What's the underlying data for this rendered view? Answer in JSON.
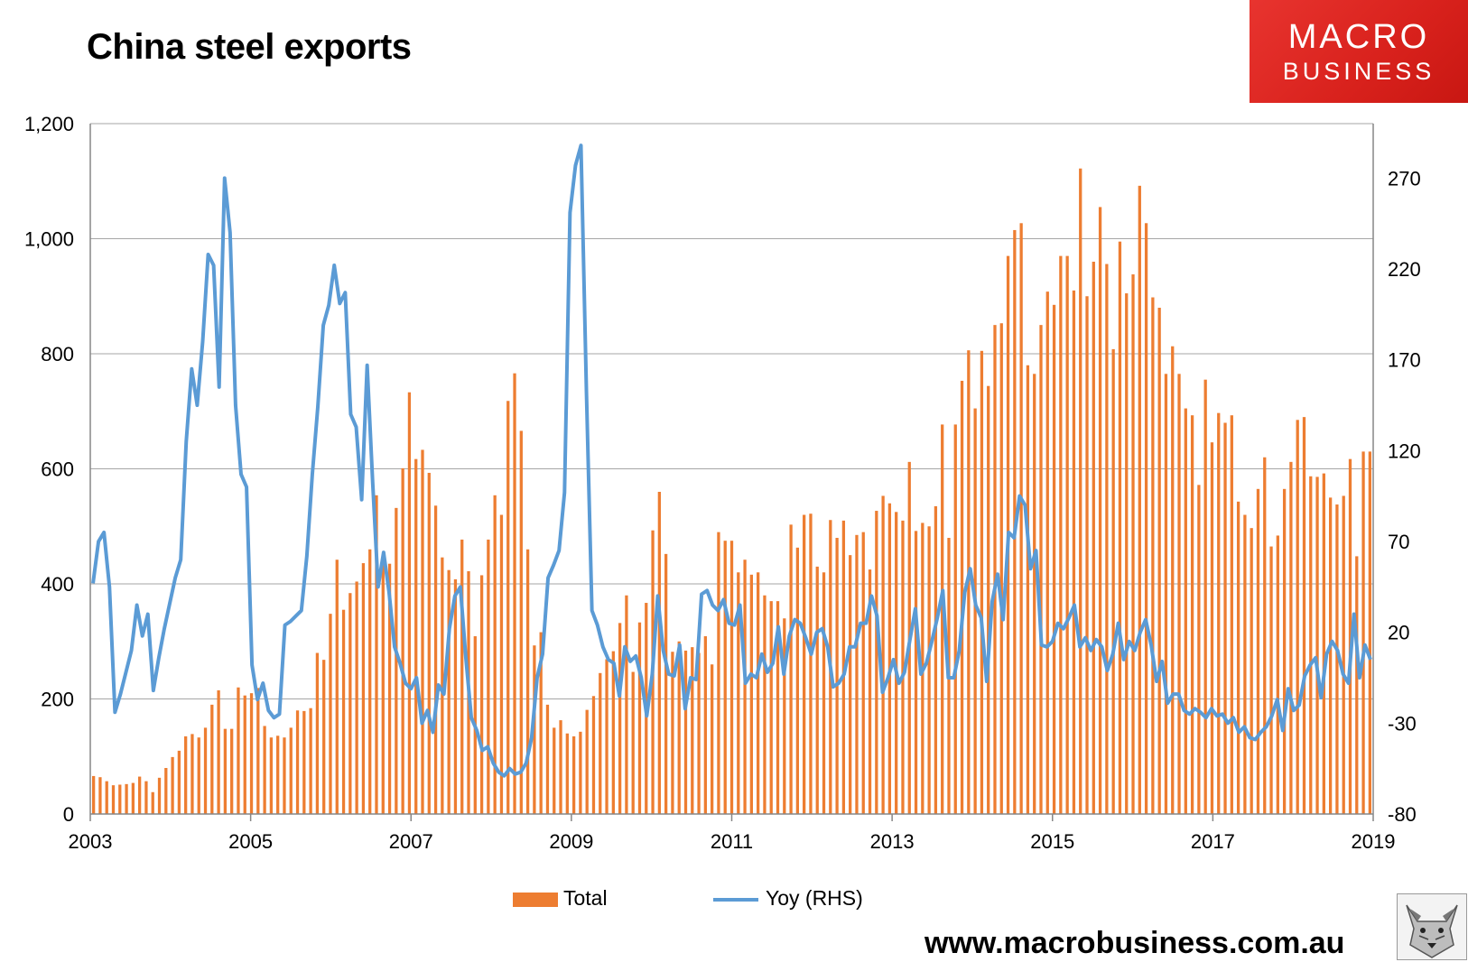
{
  "header": {
    "title": "China steel exports"
  },
  "logo": {
    "line1": "MACRO",
    "line2": "BUSINESS"
  },
  "footer": {
    "website": "www.macrobusiness.com.au"
  },
  "colors": {
    "bar": "#ED7D31",
    "line": "#5B9BD5",
    "grid": "#A6A6A6",
    "axis": "#868686"
  },
  "chart_data": {
    "type": "bar",
    "title": "China steel exports",
    "x_start": 2003,
    "x_end": 2019,
    "x_ticks": [
      "2003",
      "2005",
      "2007",
      "2009",
      "2011",
      "2013",
      "2015",
      "2017",
      "2019"
    ],
    "y_left": {
      "min": 0,
      "max": 1200,
      "ticks": [
        "0",
        "200",
        "400",
        "600",
        "800",
        "1,000",
        "1,200"
      ],
      "tick_values": [
        0,
        200,
        400,
        600,
        800,
        1000,
        1200
      ]
    },
    "y_right": {
      "min": -80,
      "max": 300,
      "ticks": [
        "-80",
        "-30",
        "20",
        "70",
        "120",
        "170",
        "220",
        "270"
      ],
      "tick_values": [
        -80,
        -30,
        20,
        70,
        120,
        170,
        220,
        270
      ]
    },
    "grid": true,
    "legend_position": "bottom",
    "series": [
      {
        "name": "Total",
        "type": "bar",
        "axis": "left",
        "values": [
          66,
          64,
          57,
          50,
          51,
          52,
          54,
          65,
          57,
          38,
          63,
          80,
          99,
          110,
          135,
          139,
          133,
          150,
          190,
          215,
          148,
          148,
          220,
          206,
          210,
          219,
          153,
          133,
          136,
          133,
          150,
          180,
          179,
          184,
          280,
          268,
          348,
          442,
          355,
          384,
          404,
          436,
          460,
          554,
          435,
          435,
          532,
          601,
          733,
          617,
          633,
          593,
          536,
          446,
          424,
          408,
          477,
          422,
          309,
          415,
          477,
          554,
          520,
          718,
          766,
          666,
          460,
          293,
          316,
          190,
          150,
          163,
          140,
          135,
          143,
          181,
          205,
          245,
          269,
          283,
          332,
          380,
          247,
          333,
          367,
          493,
          560,
          452,
          282,
          300,
          284,
          290,
          280,
          309,
          260,
          490,
          475,
          475,
          420,
          442,
          416,
          420,
          380,
          370,
          370,
          340,
          503,
          463,
          520,
          522,
          430,
          420,
          511,
          480,
          510,
          450,
          485,
          490,
          425,
          527,
          553,
          540,
          525,
          510,
          612,
          492,
          506,
          500,
          535,
          677,
          480,
          677,
          753,
          806,
          705,
          805,
          744,
          850,
          853,
          970,
          1015,
          1027,
          780,
          765,
          850,
          908,
          885,
          970,
          970,
          910,
          1122,
          900,
          960,
          1055,
          956,
          808,
          995,
          905,
          938,
          1092,
          1027,
          898,
          880,
          765,
          813,
          765,
          705,
          693,
          572,
          755,
          646,
          697,
          680,
          693,
          543,
          520,
          497,
          565,
          620,
          465,
          484,
          565,
          612,
          685,
          690,
          587,
          586,
          592,
          550,
          538,
          553,
          617,
          448,
          630,
          630
        ]
      },
      {
        "name": "Yoy (RHS)",
        "type": "line",
        "axis": "right",
        "values": [
          47,
          70,
          75,
          45,
          -24,
          -14,
          -2,
          10,
          35,
          18,
          30,
          -12,
          6,
          22,
          36,
          50,
          60,
          125,
          165,
          145,
          180,
          228,
          222,
          155,
          270,
          240,
          145,
          107,
          100,
          2,
          -17,
          -8,
          -23,
          -27,
          -25,
          24,
          26,
          29,
          32,
          62,
          107,
          144,
          189,
          200,
          222,
          201,
          207,
          140,
          133,
          93,
          167,
          103,
          45,
          64,
          42,
          12,
          3,
          -8,
          -11,
          -5,
          -30,
          -23,
          -35,
          -9,
          -14,
          22,
          40,
          45,
          6,
          -27,
          -34,
          -45,
          -43,
          -52,
          -57,
          -59,
          -55,
          -58,
          -57,
          -52,
          -38,
          -5,
          8,
          50,
          57,
          65,
          97,
          251,
          277,
          288,
          152,
          32,
          24,
          12,
          5,
          3,
          -15,
          12,
          4,
          7,
          -5,
          -26,
          -3,
          40,
          10,
          -3,
          -4,
          13,
          -22,
          -5,
          -6,
          41,
          43,
          35,
          32,
          38,
          25,
          24,
          35,
          -8,
          -3,
          -5,
          8,
          -2,
          3,
          23,
          -3,
          18,
          27,
          25,
          17,
          8,
          20,
          22,
          12,
          -10,
          -8,
          -3,
          12,
          12,
          25,
          25,
          40,
          29,
          -13,
          -5,
          5,
          -8,
          -2,
          16,
          33,
          -3,
          3,
          15,
          28,
          43,
          -5,
          -5,
          10,
          42,
          55,
          35,
          28,
          -7,
          37,
          52,
          27,
          75,
          72,
          95,
          90,
          55,
          65,
          13,
          12,
          15,
          25,
          22,
          28,
          35,
          12,
          17,
          10,
          16,
          12,
          -1,
          8,
          25,
          5,
          15,
          10,
          20,
          27,
          13,
          -7,
          4,
          -19,
          -14,
          -14,
          -23,
          -25,
          -22,
          -24,
          -27,
          -22,
          -26,
          -25,
          -30,
          -27,
          -35,
          -32,
          -38,
          -39,
          -35,
          -32,
          -26,
          -17,
          -34,
          -11,
          -23,
          -20,
          -4,
          2,
          6,
          -16,
          8,
          15,
          10,
          -3,
          -8,
          30,
          -5,
          13,
          5
        ]
      }
    ]
  }
}
